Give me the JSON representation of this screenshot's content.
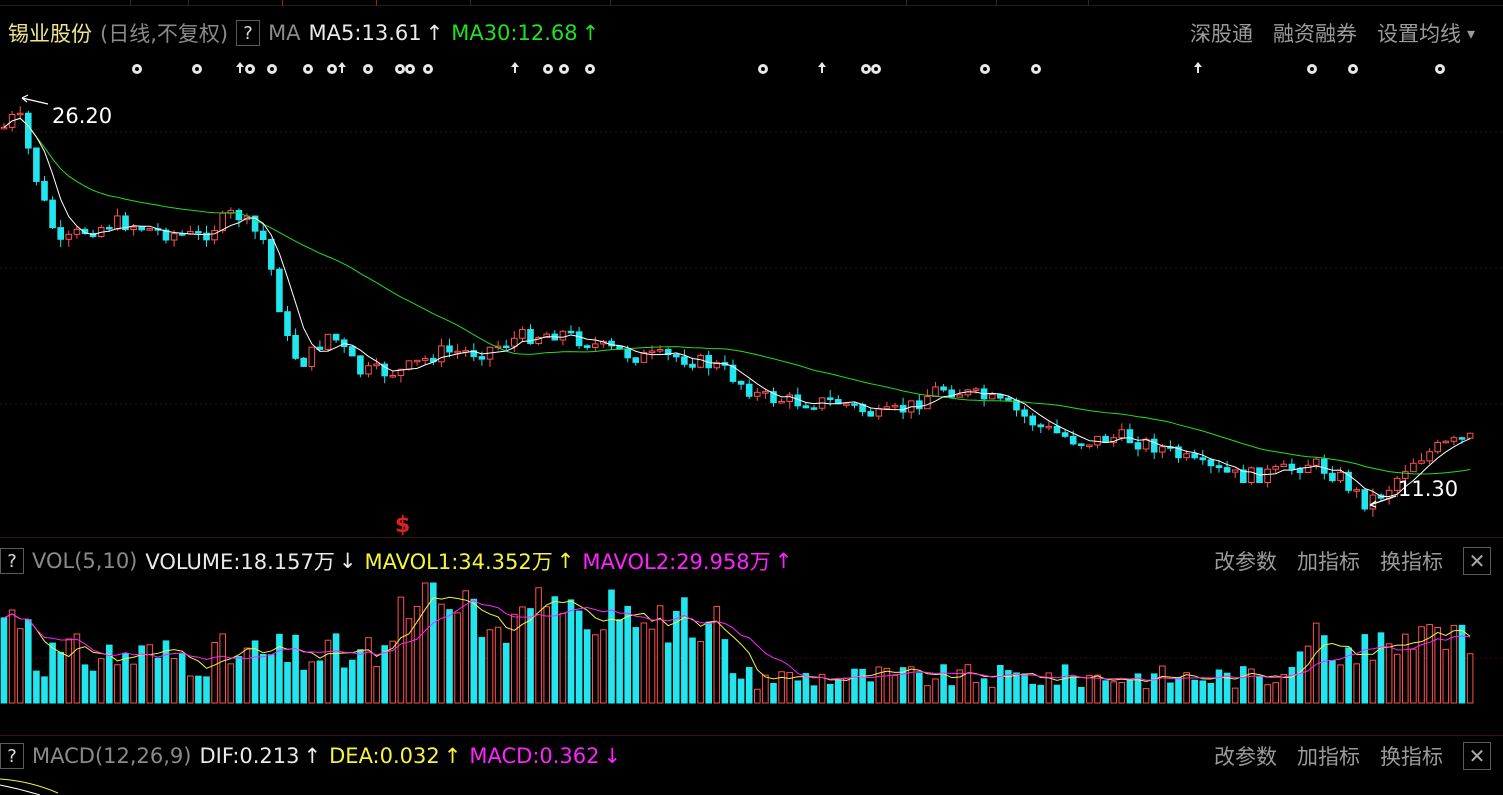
{
  "header": {
    "stock_name": "锡业股份",
    "period": "(日线,不复权)",
    "help": "?",
    "indicator": "MA",
    "ma5_label": "MA5:13.61",
    "ma5_arrow": "↑",
    "ma30_label": "MA30:12.68",
    "ma30_arrow": "↑",
    "links": [
      "深股通",
      "融资融券",
      "设置均线"
    ],
    "dropdown_icon": "▾"
  },
  "price_panel": {
    "high_label": "26.20",
    "low_label": "11.30",
    "marker_glyph": "$",
    "colors": {
      "up": "#ff5050",
      "down": "#22e5ee",
      "ma5": "#ffffff",
      "ma30": "#22dd22"
    }
  },
  "volume_panel": {
    "help": "?",
    "title": "VOL(5,10)",
    "volume_label": "VOLUME:18.157万",
    "volume_arrow": "↓",
    "mavol1_label": "MAVOL1:34.352万",
    "mavol1_arrow": "↑",
    "mavol2_label": "MAVOL2:29.958万",
    "mavol2_arrow": "↑",
    "buttons": [
      "改参数",
      "加指标",
      "换指标"
    ],
    "close": "✕"
  },
  "macd_panel": {
    "help": "?",
    "title": "MACD(12,26,9)",
    "dif_label": "DIF:0.213",
    "dif_arrow": "↑",
    "dea_label": "DEA:0.032",
    "dea_arrow": "↑",
    "macd_label": "MACD:0.362",
    "macd_arrow": "↓",
    "buttons": [
      "改参数",
      "加指标",
      "换指标"
    ],
    "close": "✕"
  }
}
